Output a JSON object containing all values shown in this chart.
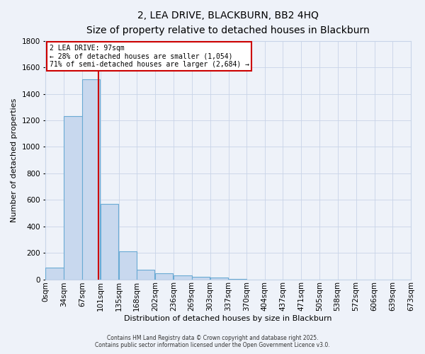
{
  "title": "2, LEA DRIVE, BLACKBURN, BB2 4HQ",
  "subtitle": "Size of property relative to detached houses in Blackburn",
  "xlabel": "Distribution of detached houses by size in Blackburn",
  "ylabel": "Number of detached properties",
  "bin_labels": [
    "0sqm",
    "34sqm",
    "67sqm",
    "101sqm",
    "135sqm",
    "168sqm",
    "202sqm",
    "236sqm",
    "269sqm",
    "303sqm",
    "337sqm",
    "370sqm",
    "404sqm",
    "437sqm",
    "471sqm",
    "505sqm",
    "538sqm",
    "572sqm",
    "606sqm",
    "639sqm",
    "673sqm"
  ],
  "bin_starts": [
    0,
    34,
    67,
    101,
    135,
    168,
    202,
    236,
    269,
    303,
    337,
    370,
    404,
    437,
    471,
    505,
    538,
    572,
    606,
    639
  ],
  "bar_values": [
    90,
    1230,
    1510,
    570,
    210,
    70,
    47,
    30,
    20,
    13,
    5,
    0,
    0,
    0,
    0,
    0,
    0,
    0,
    0,
    0
  ],
  "bar_color": "#c8d8ee",
  "bar_edge_color": "#6aaad4",
  "ylim": [
    0,
    1800
  ],
  "yticks": [
    0,
    200,
    400,
    600,
    800,
    1000,
    1200,
    1400,
    1600,
    1800
  ],
  "bin_width": 33,
  "xlim_max": 673,
  "property_line_x": 97,
  "annotation_title": "2 LEA DRIVE: 97sqm",
  "annotation_line1": "← 28% of detached houses are smaller (1,054)",
  "annotation_line2": "71% of semi-detached houses are larger (2,684) →",
  "annotation_box_color": "#ffffff",
  "annotation_box_edge_color": "#cc0000",
  "vline_color": "#cc0000",
  "footer_line1": "Contains HM Land Registry data © Crown copyright and database right 2025.",
  "footer_line2": "Contains public sector information licensed under the Open Government Licence v3.0.",
  "background_color": "#eef2f9",
  "grid_color": "#c8d4e8",
  "title_fontsize": 10,
  "subtitle_fontsize": 8.5,
  "ylabel_fontsize": 8,
  "xlabel_fontsize": 8,
  "tick_fontsize": 7.5,
  "footer_fontsize": 5.5
}
